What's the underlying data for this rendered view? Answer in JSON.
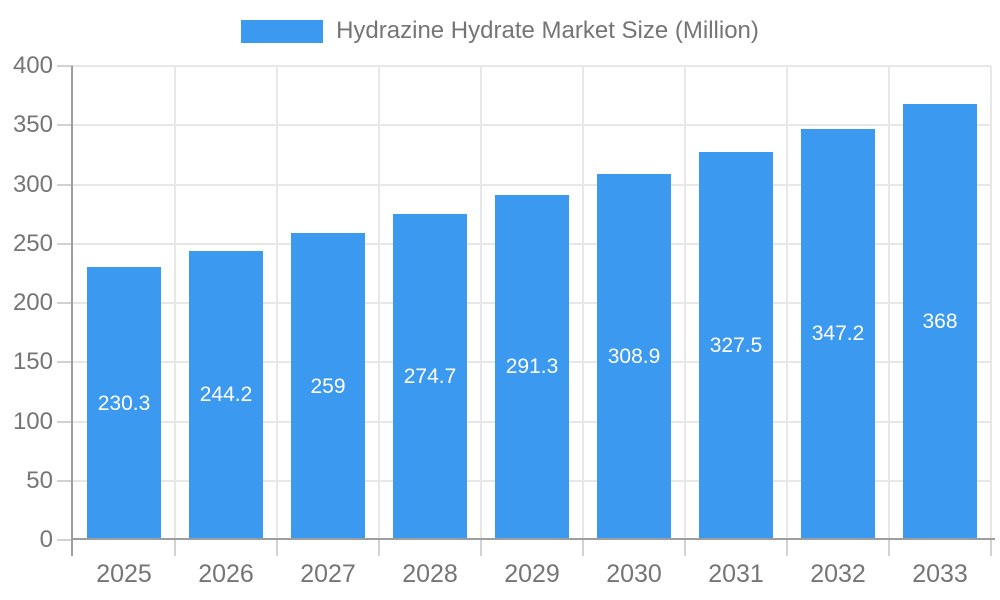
{
  "chart_data": {
    "type": "bar",
    "title": "Hydrazine Hydrate Market Size (Million)",
    "series": [
      {
        "name": "Hydrazine Hydrate Market Size (Million)",
        "values": [
          230.3,
          244.2,
          259,
          274.7,
          291.3,
          308.9,
          327.5,
          347.2,
          368
        ]
      }
    ],
    "categories": [
      "2025",
      "2026",
      "2027",
      "2028",
      "2029",
      "2030",
      "2031",
      "2032",
      "2033"
    ],
    "value_labels": [
      "230.3",
      "244.2",
      "259",
      "274.7",
      "291.3",
      "308.9",
      "327.5",
      "347.2",
      "368"
    ],
    "xlabel": "",
    "ylabel": "",
    "ylim": [
      0,
      400
    ],
    "yticks": [
      0,
      50,
      100,
      150,
      200,
      250,
      300,
      350,
      400
    ],
    "grid": true,
    "legend_position": "top",
    "colors": {
      "bar": "#3B99F0",
      "text": "#757575",
      "value_label": "#FFFFFF",
      "axis": "#9E9E9E",
      "grid": "#E7E7E7",
      "tick": "#D2D2D2"
    }
  }
}
